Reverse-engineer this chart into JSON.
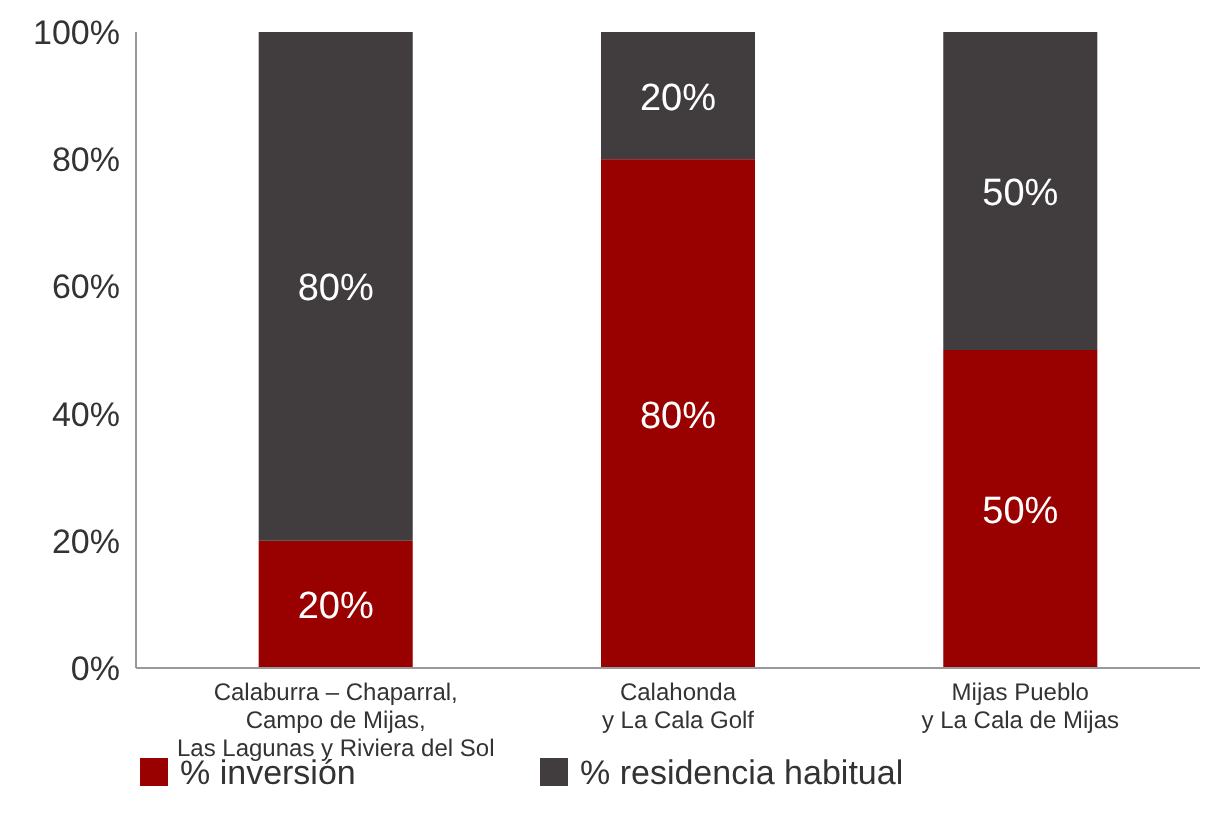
{
  "chart_data": {
    "type": "bar",
    "stacked": true,
    "categories": [
      "Calaburra – Chaparral,\nCampo de Mijas,\nLas Lagunas y Riviera del Sol",
      "Calahonda\ny La Cala Golf",
      "Mijas Pueblo\ny La Cala de Mijas"
    ],
    "series": [
      {
        "name": "% inversión",
        "color": "#990000",
        "values": [
          20,
          80,
          50
        ],
        "value_labels": [
          "20%",
          "80%",
          "50%"
        ]
      },
      {
        "name": "% residencia habitual",
        "color": "#413d3e",
        "values": [
          80,
          20,
          50
        ],
        "value_labels": [
          "80%",
          "20%",
          "50%"
        ]
      }
    ],
    "ylim": [
      0,
      100
    ],
    "yticks": [
      {
        "value": 0,
        "label": "0%"
      },
      {
        "value": 20,
        "label": "20%"
      },
      {
        "value": 40,
        "label": "40%"
      },
      {
        "value": 60,
        "label": "60%"
      },
      {
        "value": 80,
        "label": "80%"
      },
      {
        "value": 100,
        "label": "100%"
      }
    ],
    "grid": false,
    "legend": "bottom"
  }
}
